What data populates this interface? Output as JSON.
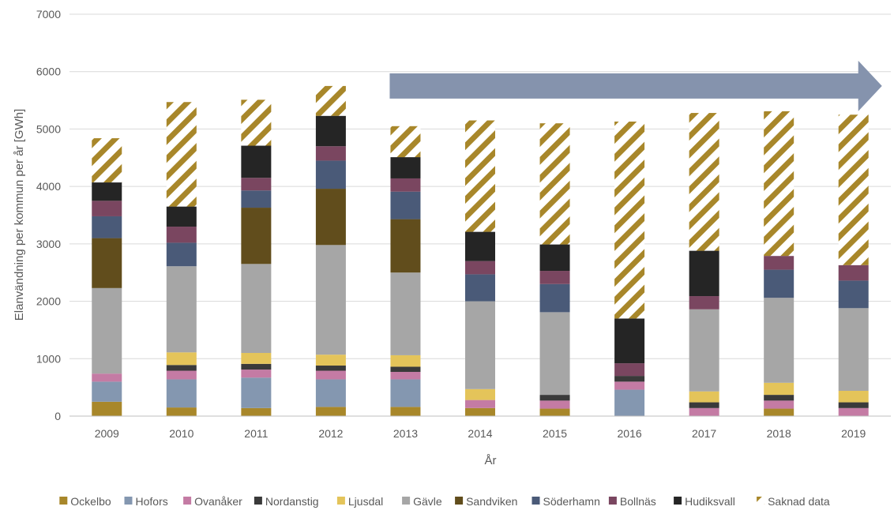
{
  "chart_data": {
    "type": "bar",
    "stacked": true,
    "title": "",
    "xlabel": "År",
    "ylabel": "Elanvändning per kommun per år [GWh]",
    "ylim": [
      0,
      7000
    ],
    "yticks": [
      0,
      1000,
      2000,
      3000,
      4000,
      5000,
      6000,
      7000
    ],
    "grid": "horizontal",
    "legend_position": "bottom",
    "categories": [
      "2009",
      "2010",
      "2011",
      "2012",
      "2013",
      "2014",
      "2015",
      "2016",
      "2017",
      "2018",
      "2019"
    ],
    "series": [
      {
        "name": "Ockelbo",
        "color": "#a8872a",
        "values": [
          250,
          150,
          140,
          160,
          160,
          140,
          130,
          0,
          0,
          130,
          0
        ]
      },
      {
        "name": "Hofors",
        "color": "#8497b0",
        "values": [
          350,
          490,
          530,
          480,
          480,
          0,
          0,
          460,
          0,
          0,
          0
        ]
      },
      {
        "name": "Ovanåker",
        "color": "#c47ba4",
        "values": [
          140,
          150,
          140,
          150,
          130,
          140,
          140,
          140,
          140,
          140,
          140
        ]
      },
      {
        "name": "Nordanstig",
        "color": "#3a3a3a",
        "values": [
          0,
          100,
          100,
          90,
          90,
          0,
          100,
          100,
          100,
          100,
          100
        ]
      },
      {
        "name": "Ljusdal",
        "color": "#e4c45a",
        "values": [
          0,
          220,
          190,
          190,
          200,
          190,
          0,
          0,
          190,
          210,
          200
        ]
      },
      {
        "name": "Gävle",
        "color": "#a6a6a6",
        "values": [
          1490,
          1500,
          1550,
          1910,
          1440,
          1530,
          1440,
          0,
          1430,
          1480,
          1440
        ]
      },
      {
        "name": "Sandviken",
        "color": "#614d1c",
        "values": [
          870,
          0,
          980,
          980,
          930,
          0,
          0,
          0,
          0,
          0,
          0
        ]
      },
      {
        "name": "Söderhamn",
        "color": "#4a5a78",
        "values": [
          380,
          410,
          300,
          490,
          480,
          470,
          490,
          0,
          0,
          490,
          480
        ]
      },
      {
        "name": "Bollnäs",
        "color": "#7a4660",
        "values": [
          270,
          280,
          220,
          250,
          230,
          230,
          230,
          220,
          230,
          240,
          270
        ]
      },
      {
        "name": "Hudiksvall",
        "color": "#252525",
        "values": [
          320,
          350,
          560,
          530,
          370,
          510,
          460,
          780,
          790,
          0,
          0
        ]
      },
      {
        "name": "Saknad data",
        "color": "#a8872a",
        "pattern": "diagonal-stripes",
        "values": [
          770,
          1820,
          800,
          520,
          540,
          1940,
          2110,
          3430,
          2400,
          2520,
          2620
        ]
      }
    ],
    "arrow_annotation": {
      "from_category": "2013",
      "to_category": "2019",
      "y_value": 5750,
      "color": "#8593ad"
    }
  }
}
